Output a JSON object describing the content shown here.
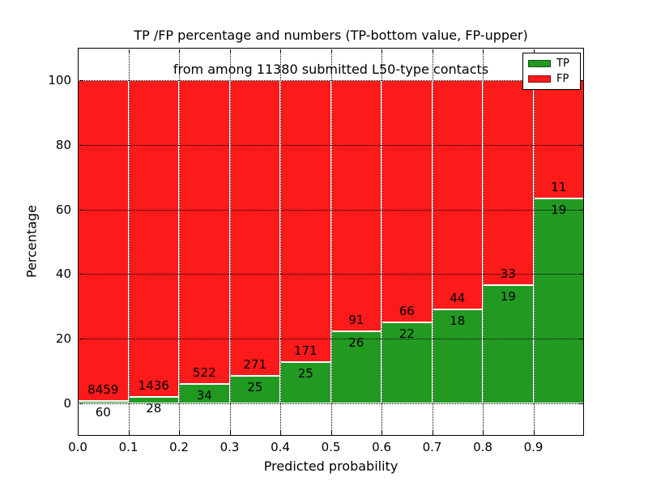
{
  "title": {
    "line1": "TP /FP percentage and numbers (TP-bottom value, FP-upper)",
    "line2": "from among 11380 submitted L50-type contacts"
  },
  "axes": {
    "xlabel": "Predicted probability",
    "ylabel": "Percentage",
    "x_tick_labels": [
      "0.0",
      "0.1",
      "0.2",
      "0.3",
      "0.4",
      "0.5",
      "0.6",
      "0.7",
      "0.8",
      "0.9"
    ],
    "y_tick_labels": [
      "0",
      "20",
      "40",
      "60",
      "80",
      "100"
    ],
    "y_tick_values": [
      0,
      20,
      40,
      60,
      80,
      100
    ]
  },
  "legend": {
    "location": "upper right",
    "items": [
      {
        "label": "TP",
        "color": "#229a22"
      },
      {
        "label": "FP",
        "color": "#fc1a1a"
      }
    ]
  },
  "chart_data": {
    "type": "bar",
    "stacked": true,
    "normalized_to_percent": true,
    "grid": true,
    "grid_style": "dotted",
    "title": "TP /FP percentage and numbers (TP-bottom value, FP-upper) from among 11380 submitted L50-type contacts",
    "xlabel": "Predicted probability",
    "ylabel": "Percentage",
    "xlim": [
      0.0,
      1.0
    ],
    "ylim": [
      -10,
      110
    ],
    "bin_width": 0.1,
    "total_contacts": 11380,
    "categories": [
      "0.0-0.1",
      "0.1-0.2",
      "0.2-0.3",
      "0.3-0.4",
      "0.4-0.5",
      "0.5-0.6",
      "0.6-0.7",
      "0.7-0.8",
      "0.8-0.9",
      "0.9-1.0"
    ],
    "bin_starts": [
      0.0,
      0.1,
      0.2,
      0.3,
      0.4,
      0.5,
      0.6,
      0.7,
      0.8,
      0.9
    ],
    "series": [
      {
        "name": "TP",
        "color": "#229a22",
        "counts": [
          60,
          28,
          34,
          25,
          25,
          26,
          22,
          18,
          19,
          19
        ]
      },
      {
        "name": "FP",
        "color": "#fc1a1a",
        "counts": [
          8459,
          1436,
          522,
          271,
          171,
          91,
          66,
          44,
          33,
          11
        ]
      }
    ],
    "tp_percent": [
      0.7,
      1.91,
      6.12,
      8.45,
      12.76,
      22.22,
      25.0,
      29.03,
      36.54,
      63.33
    ],
    "bar_edge_color": "#ffffff"
  }
}
